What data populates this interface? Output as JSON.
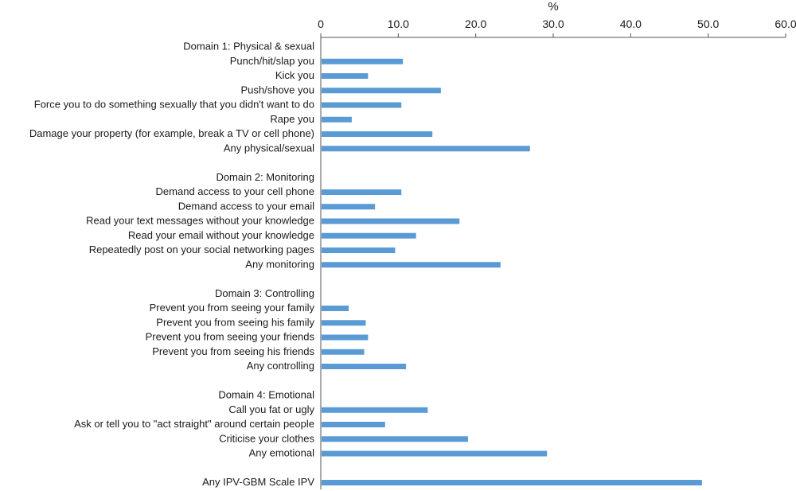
{
  "chart_data": {
    "type": "bar",
    "orientation": "horizontal",
    "xlabel": "%",
    "xlim": [
      0,
      60
    ],
    "xticks": [
      "0",
      "10.0",
      "20.0",
      "30.0",
      "40.0",
      "50.0",
      "60.0"
    ],
    "tick_values": [
      0,
      10,
      20,
      30,
      40,
      50,
      60
    ],
    "bar_color": "#5b9bd5",
    "axis_color": "#555555",
    "rows": [
      {
        "kind": "header",
        "label": "Domain 1: Physical & sexual"
      },
      {
        "kind": "bar",
        "label": "Punch/hit/slap you",
        "value": 10.6
      },
      {
        "kind": "bar",
        "label": "Kick you",
        "value": 6.1
      },
      {
        "kind": "bar",
        "label": "Push/shove you",
        "value": 15.5
      },
      {
        "kind": "bar",
        "label": "Force you to do something sexually that you didn't want to do",
        "value": 10.4
      },
      {
        "kind": "bar",
        "label": "Rape you",
        "value": 4.0
      },
      {
        "kind": "bar",
        "label": "Damage your property (for example, break a TV or cell phone)",
        "value": 14.4
      },
      {
        "kind": "bar",
        "label": "Any physical/sexual",
        "value": 27.0
      },
      {
        "kind": "gap"
      },
      {
        "kind": "header",
        "label": "Domain 2: Monitoring"
      },
      {
        "kind": "bar",
        "label": "Demand access to your cell phone",
        "value": 10.4
      },
      {
        "kind": "bar",
        "label": "Demand access to your email",
        "value": 7.0
      },
      {
        "kind": "bar",
        "label": "Read your text messages without your knowledge",
        "value": 17.9
      },
      {
        "kind": "bar",
        "label": "Read your email without your knowledge",
        "value": 12.3
      },
      {
        "kind": "bar",
        "label": "Repeatedly post on your social networking pages",
        "value": 9.6
      },
      {
        "kind": "bar",
        "label": "Any monitoring",
        "value": 23.2
      },
      {
        "kind": "gap"
      },
      {
        "kind": "header",
        "label": "Domain 3: Controlling"
      },
      {
        "kind": "bar",
        "label": "Prevent you from seeing your family",
        "value": 3.6
      },
      {
        "kind": "bar",
        "label": "Prevent you from seeing his family",
        "value": 5.8
      },
      {
        "kind": "bar",
        "label": "Prevent you from seeing your friends",
        "value": 6.1
      },
      {
        "kind": "bar",
        "label": "Prevent you from seeing his friends",
        "value": 5.6
      },
      {
        "kind": "bar",
        "label": "Any controlling",
        "value": 11.0
      },
      {
        "kind": "gap"
      },
      {
        "kind": "header",
        "label": "Domain 4: Emotional"
      },
      {
        "kind": "bar",
        "label": "Call you fat or ugly",
        "value": 13.8
      },
      {
        "kind": "bar",
        "label": "Ask or tell you to \"act straight\" around certain people",
        "value": 8.3
      },
      {
        "kind": "bar",
        "label": "Criticise your clothes",
        "value": 19.0
      },
      {
        "kind": "bar",
        "label": "Any emotional",
        "value": 29.2
      },
      {
        "kind": "gap"
      },
      {
        "kind": "bar",
        "label": "Any IPV-GBM Scale IPV",
        "value": 49.2
      }
    ]
  }
}
